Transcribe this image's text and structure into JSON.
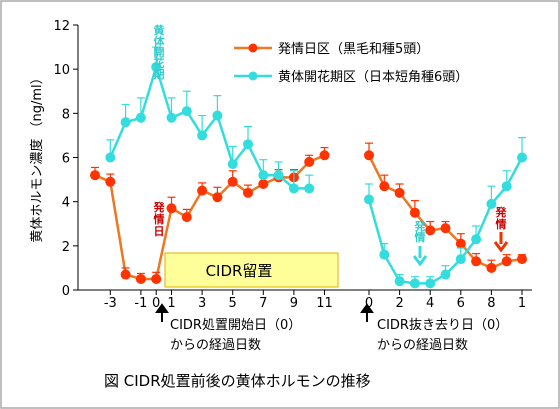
{
  "chart_data": {
    "type": "line",
    "title": "",
    "ylabel": "黄体ホルモン濃度  （ng/ml）",
    "ylim": [
      0,
      12
    ],
    "yticks": [
      0,
      2,
      4,
      6,
      8,
      10,
      12
    ],
    "xticks_left": [
      "-3",
      "-1",
      "1",
      "3",
      "5",
      "7",
      "9",
      "11"
    ],
    "xticks_right": [
      "0",
      "2",
      "4",
      "6",
      "8",
      "1"
    ],
    "xlabel_left": [
      "CIDR処置開始日（0）",
      "からの経過日数"
    ],
    "xlabel_right": [
      "CIDR抜き去り日（0）",
      "からの経過日数"
    ],
    "x_left": [
      -4,
      -3,
      -2,
      -1,
      0,
      1,
      2,
      3,
      4,
      5,
      6,
      7,
      8,
      9,
      10,
      11
    ],
    "x_right": [
      0,
      1,
      2,
      3,
      4,
      5,
      6,
      7,
      8,
      9,
      10
    ],
    "series": [
      {
        "name": "発情日区（黒毛和種5頭）",
        "color": "#ff3300",
        "line_color": "#ee7722",
        "left_values": [
          5.2,
          4.9,
          0.7,
          0.5,
          0.5,
          3.7,
          3.3,
          4.5,
          4.2,
          4.9,
          4.4,
          4.8,
          5.1,
          5.1,
          5.8,
          6.1
        ],
        "left_errors": [
          0.35,
          0.35,
          0.3,
          0.25,
          0.3,
          0.5,
          0.35,
          0.35,
          0.45,
          0.5,
          0.35,
          0.3,
          0.35,
          0.35,
          0.3,
          0.35
        ],
        "right_values": [
          6.1,
          4.7,
          4.4,
          3.5,
          2.7,
          2.8,
          2.1,
          1.3,
          1.0,
          1.3,
          1.4
        ],
        "right_errors": [
          0.55,
          0.5,
          0.4,
          0.55,
          0.4,
          0.3,
          0.45,
          0.35,
          0.35,
          0.3,
          0.2
        ]
      },
      {
        "name": "黄体開花期区（日本短角種6頭）",
        "color": "#33dddd",
        "line_color": "#33dddd",
        "left_values": [
          null,
          6.0,
          7.6,
          7.8,
          10.1,
          7.8,
          8.1,
          7.0,
          7.9,
          5.7,
          6.6,
          5.2,
          5.2,
          4.6,
          4.6,
          null
        ],
        "left_errors": [
          0,
          0.8,
          0.8,
          0.9,
          0.9,
          0.9,
          0.9,
          0.9,
          0.9,
          0.8,
          0.8,
          0.7,
          0.6,
          0.8,
          0.6,
          0
        ],
        "right_values": [
          4.1,
          1.6,
          0.4,
          0.3,
          0.3,
          0.7,
          1.4,
          2.3,
          3.9,
          4.7,
          6.0
        ],
        "right_errors": [
          0.7,
          0.5,
          0.3,
          0.3,
          0.3,
          0.4,
          0.5,
          0.6,
          0.8,
          0.7,
          0.9
        ]
      }
    ],
    "shaded_box_label": "CIDR留置",
    "annotations": {
      "red_estrus_left": "発情日",
      "red_estrus_right": "発情",
      "cyan_luteal": "黄体開花期",
      "cyan_estrus": "発情"
    },
    "caption": "図  CIDR処置前後の黄体ホルモンの推移",
    "colors": {
      "frame": "#aaaaaa",
      "box_fill": "#ffff99",
      "box_stroke": "#e0b000"
    }
  }
}
